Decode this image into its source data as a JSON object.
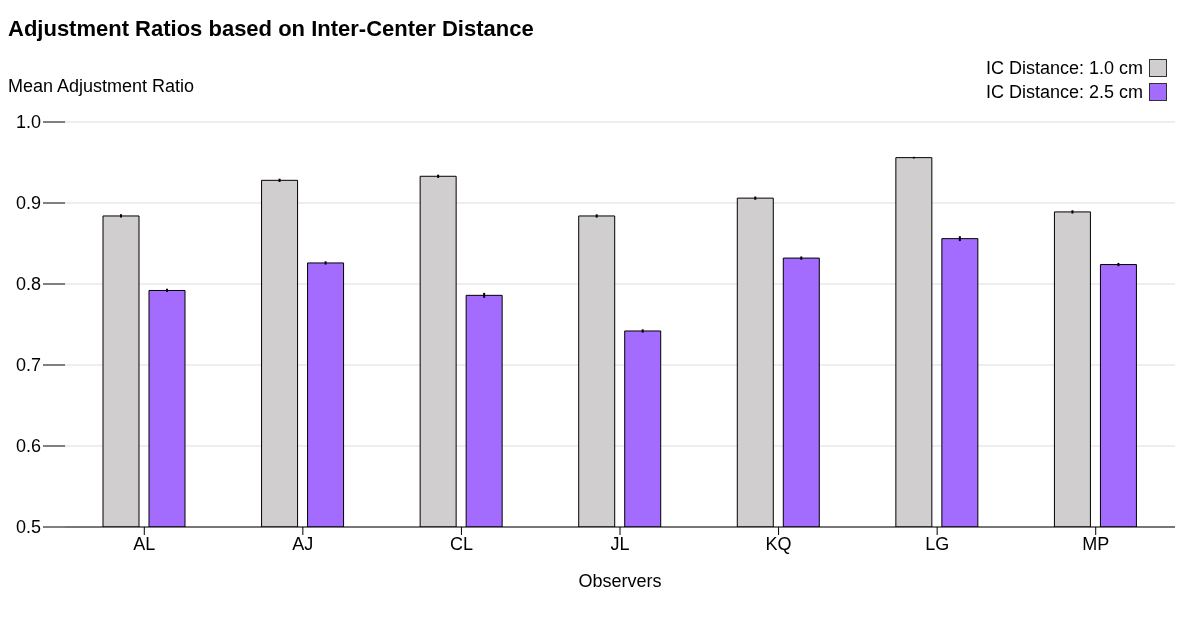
{
  "chart_data": {
    "type": "bar",
    "title": "Adjustment Ratios based on Inter-Center Distance",
    "xlabel": "Observers",
    "ylabel": "Mean Adjustment Ratio",
    "categories": [
      "AL",
      "AJ",
      "CL",
      "JL",
      "KQ",
      "LG",
      "MP"
    ],
    "series": [
      {
        "name": "IC Distance: 1.0 cm",
        "color": "#d0cece",
        "values": [
          0.884,
          0.928,
          0.933,
          0.884,
          0.906,
          0.956,
          0.889
        ],
        "errors": [
          0.002,
          0.002,
          0.002,
          0.002,
          0.002,
          0.001,
          0.002
        ]
      },
      {
        "name": "IC Distance: 2.5 cm",
        "color": "#a36cff",
        "values": [
          0.792,
          0.826,
          0.786,
          0.742,
          0.832,
          0.856,
          0.824
        ],
        "errors": [
          0.002,
          0.002,
          0.003,
          0.002,
          0.002,
          0.003,
          0.002
        ]
      }
    ],
    "ylim": [
      0.5,
      1.0
    ],
    "yticks": [
      0.5,
      0.6,
      0.7,
      0.8,
      0.9,
      {
        "value": 1,
        "label": "1.0"
      }
    ],
    "grid": "y",
    "legend": "top right"
  }
}
